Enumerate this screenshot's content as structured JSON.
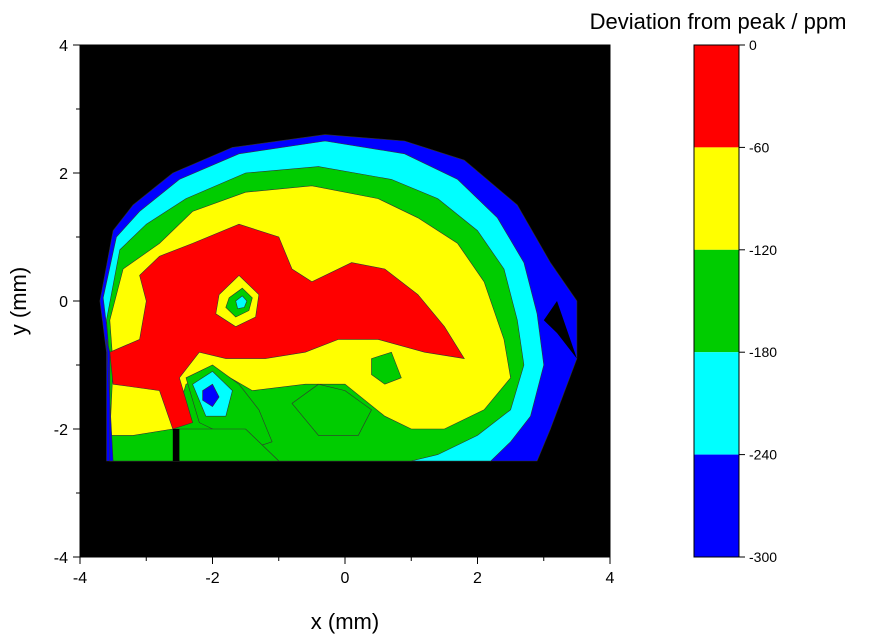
{
  "chart_data": {
    "type": "contour",
    "xlabel": "x (mm)",
    "ylabel": "y (mm)",
    "xlim": [
      -4,
      4
    ],
    "ylim": [
      -4,
      4
    ],
    "x_ticks": [
      "-4",
      "-2",
      "0",
      "2",
      "4"
    ],
    "y_ticks": [
      "4",
      "2",
      "0",
      "-2",
      "-4"
    ],
    "x_tick_values": [
      -4,
      -2,
      0,
      2,
      4
    ],
    "y_tick_values": [
      4,
      2,
      0,
      -2,
      -4
    ],
    "background_color": "#000000",
    "colorbar": {
      "title": "Deviation from peak / ppm",
      "levels": [
        0,
        -60,
        -120,
        -180,
        -240,
        -300
      ],
      "labels": [
        "0",
        "-60",
        "-120",
        "-180",
        "-240",
        "-300"
      ],
      "bands": [
        {
          "from": 0,
          "to": -60,
          "color": "#ff0000"
        },
        {
          "from": -60,
          "to": -120,
          "color": "#ffff00"
        },
        {
          "from": -120,
          "to": -180,
          "color": "#00cc00"
        },
        {
          "from": -180,
          "to": -240,
          "color": "#00ffff"
        },
        {
          "from": -240,
          "to": -300,
          "color": "#0000ff"
        }
      ]
    },
    "regions": [
      {
        "level": -300,
        "color": "#0000ff",
        "points": [
          [
            -3.6,
            -2.5
          ],
          [
            -3.6,
            -0.8
          ],
          [
            -3.7,
            0.0
          ],
          [
            -3.5,
            1.1
          ],
          [
            -3.2,
            1.5
          ],
          [
            -2.6,
            2.0
          ],
          [
            -1.7,
            2.4
          ],
          [
            -0.3,
            2.6
          ],
          [
            0.9,
            2.5
          ],
          [
            1.8,
            2.2
          ],
          [
            2.6,
            1.5
          ],
          [
            3.1,
            0.6
          ],
          [
            3.5,
            0.0
          ],
          [
            3.5,
            -0.9
          ],
          [
            3.1,
            -2.0
          ],
          [
            2.9,
            -2.5
          ]
        ]
      },
      {
        "level": -240,
        "color": "#00ffff",
        "points": [
          [
            -3.55,
            -2.5
          ],
          [
            -3.55,
            -0.8
          ],
          [
            -3.65,
            0.05
          ],
          [
            -3.45,
            1.0
          ],
          [
            -3.1,
            1.4
          ],
          [
            -2.5,
            1.9
          ],
          [
            -1.6,
            2.3
          ],
          [
            -0.3,
            2.5
          ],
          [
            0.9,
            2.3
          ],
          [
            1.7,
            1.9
          ],
          [
            2.3,
            1.3
          ],
          [
            2.7,
            0.6
          ],
          [
            2.9,
            -0.2
          ],
          [
            3.0,
            -1.0
          ],
          [
            2.8,
            -1.8
          ],
          [
            2.5,
            -2.2
          ],
          [
            2.2,
            -2.5
          ]
        ]
      },
      {
        "level": -180,
        "color": "#00cc00",
        "points": [
          [
            -3.55,
            -2.5
          ],
          [
            -3.55,
            -1.0
          ],
          [
            -3.6,
            -0.3
          ],
          [
            -3.4,
            0.8
          ],
          [
            -3.0,
            1.2
          ],
          [
            -2.4,
            1.6
          ],
          [
            -1.5,
            2.0
          ],
          [
            -0.4,
            2.1
          ],
          [
            0.7,
            1.9
          ],
          [
            1.4,
            1.6
          ],
          [
            2.0,
            1.1
          ],
          [
            2.4,
            0.5
          ],
          [
            2.6,
            -0.3
          ],
          [
            2.7,
            -1.0
          ],
          [
            2.5,
            -1.7
          ],
          [
            2.0,
            -2.1
          ],
          [
            1.4,
            -2.4
          ],
          [
            1.0,
            -2.5
          ]
        ]
      },
      {
        "level": -120,
        "color": "#ffff00",
        "points": [
          [
            -3.55,
            -2.1
          ],
          [
            -3.5,
            -1.0
          ],
          [
            -3.55,
            -0.3
          ],
          [
            -3.35,
            0.5
          ],
          [
            -2.8,
            0.9
          ],
          [
            -2.3,
            1.4
          ],
          [
            -1.5,
            1.7
          ],
          [
            -0.5,
            1.8
          ],
          [
            0.5,
            1.6
          ],
          [
            1.1,
            1.3
          ],
          [
            1.7,
            0.9
          ],
          [
            2.1,
            0.3
          ],
          [
            2.4,
            -0.6
          ],
          [
            2.5,
            -1.2
          ],
          [
            2.1,
            -1.7
          ],
          [
            1.5,
            -2.0
          ],
          [
            1.0,
            -2.0
          ],
          [
            0.6,
            -1.8
          ],
          [
            0.0,
            -1.3
          ],
          [
            -0.6,
            -1.3
          ],
          [
            -1.4,
            -1.4
          ],
          [
            -1.9,
            -1.1
          ],
          [
            -2.4,
            -1.3
          ],
          [
            -2.6,
            -2.0
          ],
          [
            -3.2,
            -2.1
          ]
        ]
      },
      {
        "level": -60,
        "color": "#ff0000",
        "points": [
          [
            -3.1,
            0.4
          ],
          [
            -2.8,
            0.7
          ],
          [
            -2.3,
            0.9
          ],
          [
            -1.6,
            1.2
          ],
          [
            -1.0,
            1.0
          ],
          [
            -0.8,
            0.5
          ],
          [
            -0.5,
            0.3
          ],
          [
            0.1,
            0.6
          ],
          [
            0.6,
            0.5
          ],
          [
            1.1,
            0.1
          ],
          [
            1.5,
            -0.4
          ],
          [
            1.8,
            -0.9
          ],
          [
            1.2,
            -0.8
          ],
          [
            0.5,
            -0.6
          ],
          [
            -0.1,
            -0.6
          ],
          [
            -0.6,
            -0.8
          ],
          [
            -1.2,
            -0.9
          ],
          [
            -1.8,
            -0.9
          ],
          [
            -2.2,
            -0.8
          ],
          [
            -2.5,
            -1.2
          ],
          [
            -2.3,
            -1.9
          ],
          [
            -2.6,
            -2.0
          ],
          [
            -2.8,
            -1.4
          ],
          [
            -3.5,
            -1.3
          ],
          [
            -3.55,
            -0.8
          ],
          [
            -3.1,
            -0.6
          ],
          [
            -3.0,
            0.0
          ]
        ]
      },
      {
        "level": -120,
        "color": "#ffff00",
        "points": [
          [
            -1.9,
            0.1
          ],
          [
            -1.6,
            0.4
          ],
          [
            -1.3,
            0.1
          ],
          [
            -1.35,
            -0.25
          ],
          [
            -1.65,
            -0.4
          ],
          [
            -1.95,
            -0.2
          ]
        ]
      },
      {
        "level": -180,
        "color": "#00cc00",
        "points": [
          [
            -1.75,
            0.05
          ],
          [
            -1.55,
            0.2
          ],
          [
            -1.4,
            0.05
          ],
          [
            -1.45,
            -0.15
          ],
          [
            -1.65,
            -0.25
          ],
          [
            -1.8,
            -0.1
          ]
        ]
      },
      {
        "level": -240,
        "color": "#00ffff",
        "points": [
          [
            -1.65,
            0.0
          ],
          [
            -1.55,
            0.08
          ],
          [
            -1.48,
            0.0
          ],
          [
            -1.52,
            -0.1
          ],
          [
            -1.62,
            -0.12
          ]
        ]
      },
      {
        "level": -180,
        "color": "#00cc00",
        "points": [
          [
            -2.4,
            -1.2
          ],
          [
            -2.0,
            -1.0
          ],
          [
            -1.6,
            -1.3
          ],
          [
            -1.3,
            -1.7
          ],
          [
            -1.1,
            -2.2
          ],
          [
            -1.4,
            -2.3
          ],
          [
            -1.8,
            -2.1
          ],
          [
            -2.2,
            -1.9
          ]
        ]
      },
      {
        "level": -240,
        "color": "#00ffff",
        "points": [
          [
            -2.3,
            -1.3
          ],
          [
            -2.0,
            -1.1
          ],
          [
            -1.7,
            -1.4
          ],
          [
            -1.8,
            -1.8
          ],
          [
            -2.1,
            -1.8
          ]
        ]
      },
      {
        "level": -300,
        "color": "#0000ff",
        "points": [
          [
            -2.15,
            -1.4
          ],
          [
            -2.0,
            -1.3
          ],
          [
            -1.9,
            -1.5
          ],
          [
            -2.0,
            -1.65
          ],
          [
            -2.15,
            -1.55
          ]
        ]
      },
      {
        "level": -180,
        "color": "#00cc00",
        "points": [
          [
            -0.8,
            -1.6
          ],
          [
            -0.4,
            -1.3
          ],
          [
            0.0,
            -1.4
          ],
          [
            0.4,
            -1.7
          ],
          [
            0.2,
            -2.1
          ],
          [
            -0.4,
            -2.1
          ]
        ]
      },
      {
        "level": -180,
        "color": "#00cc00",
        "points": [
          [
            0.4,
            -0.9
          ],
          [
            0.7,
            -0.8
          ],
          [
            0.85,
            -1.2
          ],
          [
            0.6,
            -1.3
          ],
          [
            0.4,
            -1.15
          ]
        ]
      },
      {
        "level": -180,
        "color": "#00cc00",
        "points": [
          [
            -2.6,
            -2.0
          ],
          [
            -1.5,
            -2.0
          ],
          [
            -1.0,
            -2.5
          ],
          [
            -2.5,
            -2.5
          ]
        ]
      },
      {
        "level": -300,
        "color": "#0000ff",
        "points": [
          [
            -3.55,
            -2.5
          ],
          [
            -3.55,
            -0.8
          ],
          [
            -3.6,
            -0.6
          ],
          [
            -3.5,
            -2.5
          ]
        ]
      }
    ],
    "mask_regions": [
      {
        "color": "#000000",
        "points": [
          [
            3.0,
            -0.3
          ],
          [
            3.2,
            0.0
          ],
          [
            3.5,
            -0.9
          ],
          [
            3.2,
            -0.5
          ]
        ]
      },
      {
        "color": "#000000",
        "points": [
          [
            -2.5,
            -2.5
          ],
          [
            -2.5,
            -2.0
          ],
          [
            -2.6,
            -2.0
          ],
          [
            -2.6,
            -2.5
          ]
        ]
      }
    ]
  }
}
